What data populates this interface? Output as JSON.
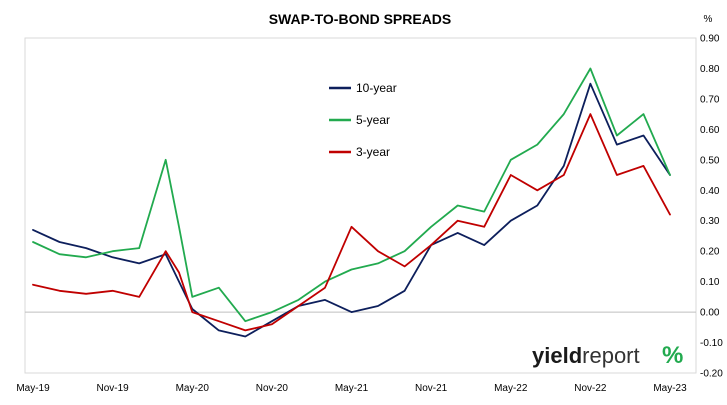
{
  "chart_data": {
    "type": "line",
    "title": "SWAP-TO-BOND SPREADS",
    "y_unit_label": "%",
    "xlabel": "",
    "ylabel": "",
    "x_tick_labels": [
      "May-19",
      "Nov-19",
      "May-20",
      "Nov-20",
      "May-21",
      "Nov-21",
      "May-22",
      "Nov-22",
      "May-23"
    ],
    "ylim": [
      -0.2,
      0.9
    ],
    "y_ticks": [
      -0.2,
      -0.1,
      0.0,
      0.1,
      0.2,
      0.3,
      0.4,
      0.5,
      0.6,
      0.7,
      0.8,
      0.9
    ],
    "y_tick_labels": [
      "-0.20",
      "-0.10",
      "0.00",
      "0.10",
      "0.20",
      "0.30",
      "0.40",
      "0.50",
      "0.60",
      "0.70",
      "0.80",
      "0.90"
    ],
    "grid": false,
    "legend_position": "upper-center",
    "series": [
      {
        "name": "10-year",
        "color": "#0d1f5c",
        "x": [
          "May-19",
          "Jul-19",
          "Sep-19",
          "Nov-19",
          "Jan-20",
          "Mar-20",
          "Apr-20",
          "May-20",
          "Jul-20",
          "Sep-20",
          "Nov-20",
          "Jan-21",
          "Mar-21",
          "May-21",
          "Jul-21",
          "Sep-21",
          "Nov-21",
          "Jan-22",
          "Mar-22",
          "May-22",
          "Jul-22",
          "Sep-22",
          "Nov-22",
          "Jan-23",
          "Mar-23",
          "May-23"
        ],
        "values": [
          0.27,
          0.23,
          0.21,
          0.18,
          0.16,
          0.19,
          0.1,
          0.01,
          -0.06,
          -0.08,
          -0.03,
          0.02,
          0.04,
          0.0,
          0.02,
          0.07,
          0.22,
          0.26,
          0.22,
          0.3,
          0.35,
          0.48,
          0.75,
          0.55,
          0.58,
          0.45
        ]
      },
      {
        "name": "5-year",
        "color": "#22aa4f",
        "x": [
          "May-19",
          "Jul-19",
          "Sep-19",
          "Nov-19",
          "Jan-20",
          "Mar-20",
          "Apr-20",
          "May-20",
          "Jul-20",
          "Sep-20",
          "Nov-20",
          "Jan-21",
          "Mar-21",
          "May-21",
          "Jul-21",
          "Sep-21",
          "Nov-21",
          "Jan-22",
          "Mar-22",
          "May-22",
          "Jul-22",
          "Sep-22",
          "Nov-22",
          "Jan-23",
          "Mar-23",
          "May-23"
        ],
        "values": [
          0.23,
          0.19,
          0.18,
          0.2,
          0.21,
          0.5,
          0.28,
          0.05,
          0.08,
          -0.03,
          0.0,
          0.04,
          0.1,
          0.14,
          0.16,
          0.2,
          0.28,
          0.35,
          0.33,
          0.5,
          0.55,
          0.65,
          0.8,
          0.58,
          0.65,
          0.45
        ]
      },
      {
        "name": "3-year",
        "color": "#c00000",
        "x": [
          "May-19",
          "Jul-19",
          "Sep-19",
          "Nov-19",
          "Jan-20",
          "Mar-20",
          "Apr-20",
          "May-20",
          "Jul-20",
          "Sep-20",
          "Nov-20",
          "Jan-21",
          "Mar-21",
          "May-21",
          "Jul-21",
          "Sep-21",
          "Nov-21",
          "Jan-22",
          "Mar-22",
          "May-22",
          "Jul-22",
          "Sep-22",
          "Nov-22",
          "Jan-23",
          "Mar-23",
          "May-23"
        ],
        "values": [
          0.09,
          0.07,
          0.06,
          0.07,
          0.05,
          0.2,
          0.13,
          0.0,
          -0.03,
          -0.06,
          -0.04,
          0.02,
          0.08,
          0.28,
          0.2,
          0.15,
          0.22,
          0.3,
          0.28,
          0.45,
          0.4,
          0.45,
          0.65,
          0.45,
          0.48,
          0.32
        ]
      }
    ]
  },
  "branding": {
    "wordmark_main": "yield",
    "wordmark_secondary": "report",
    "wordmark_symbol": "%",
    "symbol_colors": [
      "#22aa4f",
      "#c00000"
    ]
  }
}
